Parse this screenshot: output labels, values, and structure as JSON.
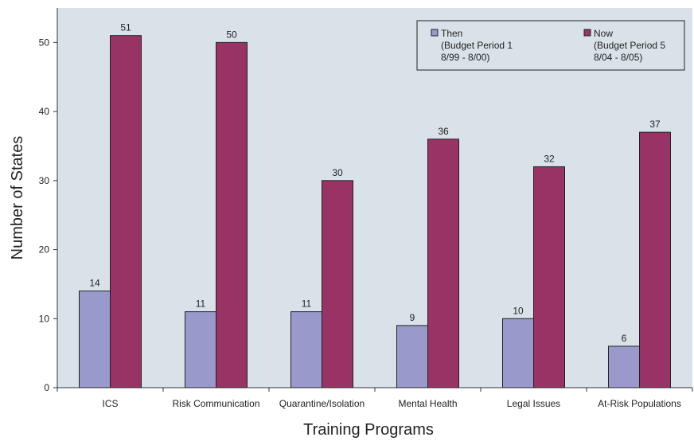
{
  "chart_data": {
    "type": "bar",
    "title": "",
    "xlabel": "Training Programs",
    "ylabel": "Number of States",
    "categories": [
      "ICS",
      "Risk Communication",
      "Quarantine/Isolation",
      "Mental Health",
      "Legal Issues",
      "At-Risk Populations"
    ],
    "series": [
      {
        "name": "Then",
        "legend_lines": [
          "Then",
          "(Budget Period 1",
          "8/99 - 8/00)"
        ],
        "values": [
          14,
          11,
          11,
          9,
          10,
          6
        ],
        "color": "#9999cc"
      },
      {
        "name": "Now",
        "legend_lines": [
          "Now",
          "(Budget Period 5",
          "8/04 - 8/05)"
        ],
        "values": [
          51,
          50,
          30,
          36,
          32,
          37
        ],
        "color": "#993366"
      }
    ],
    "ylim": [
      0,
      55
    ],
    "yticks": [
      0,
      10,
      20,
      30,
      40,
      50
    ],
    "grid": false,
    "legend_position": "top-right",
    "plot_background": "#d9e2e8"
  }
}
